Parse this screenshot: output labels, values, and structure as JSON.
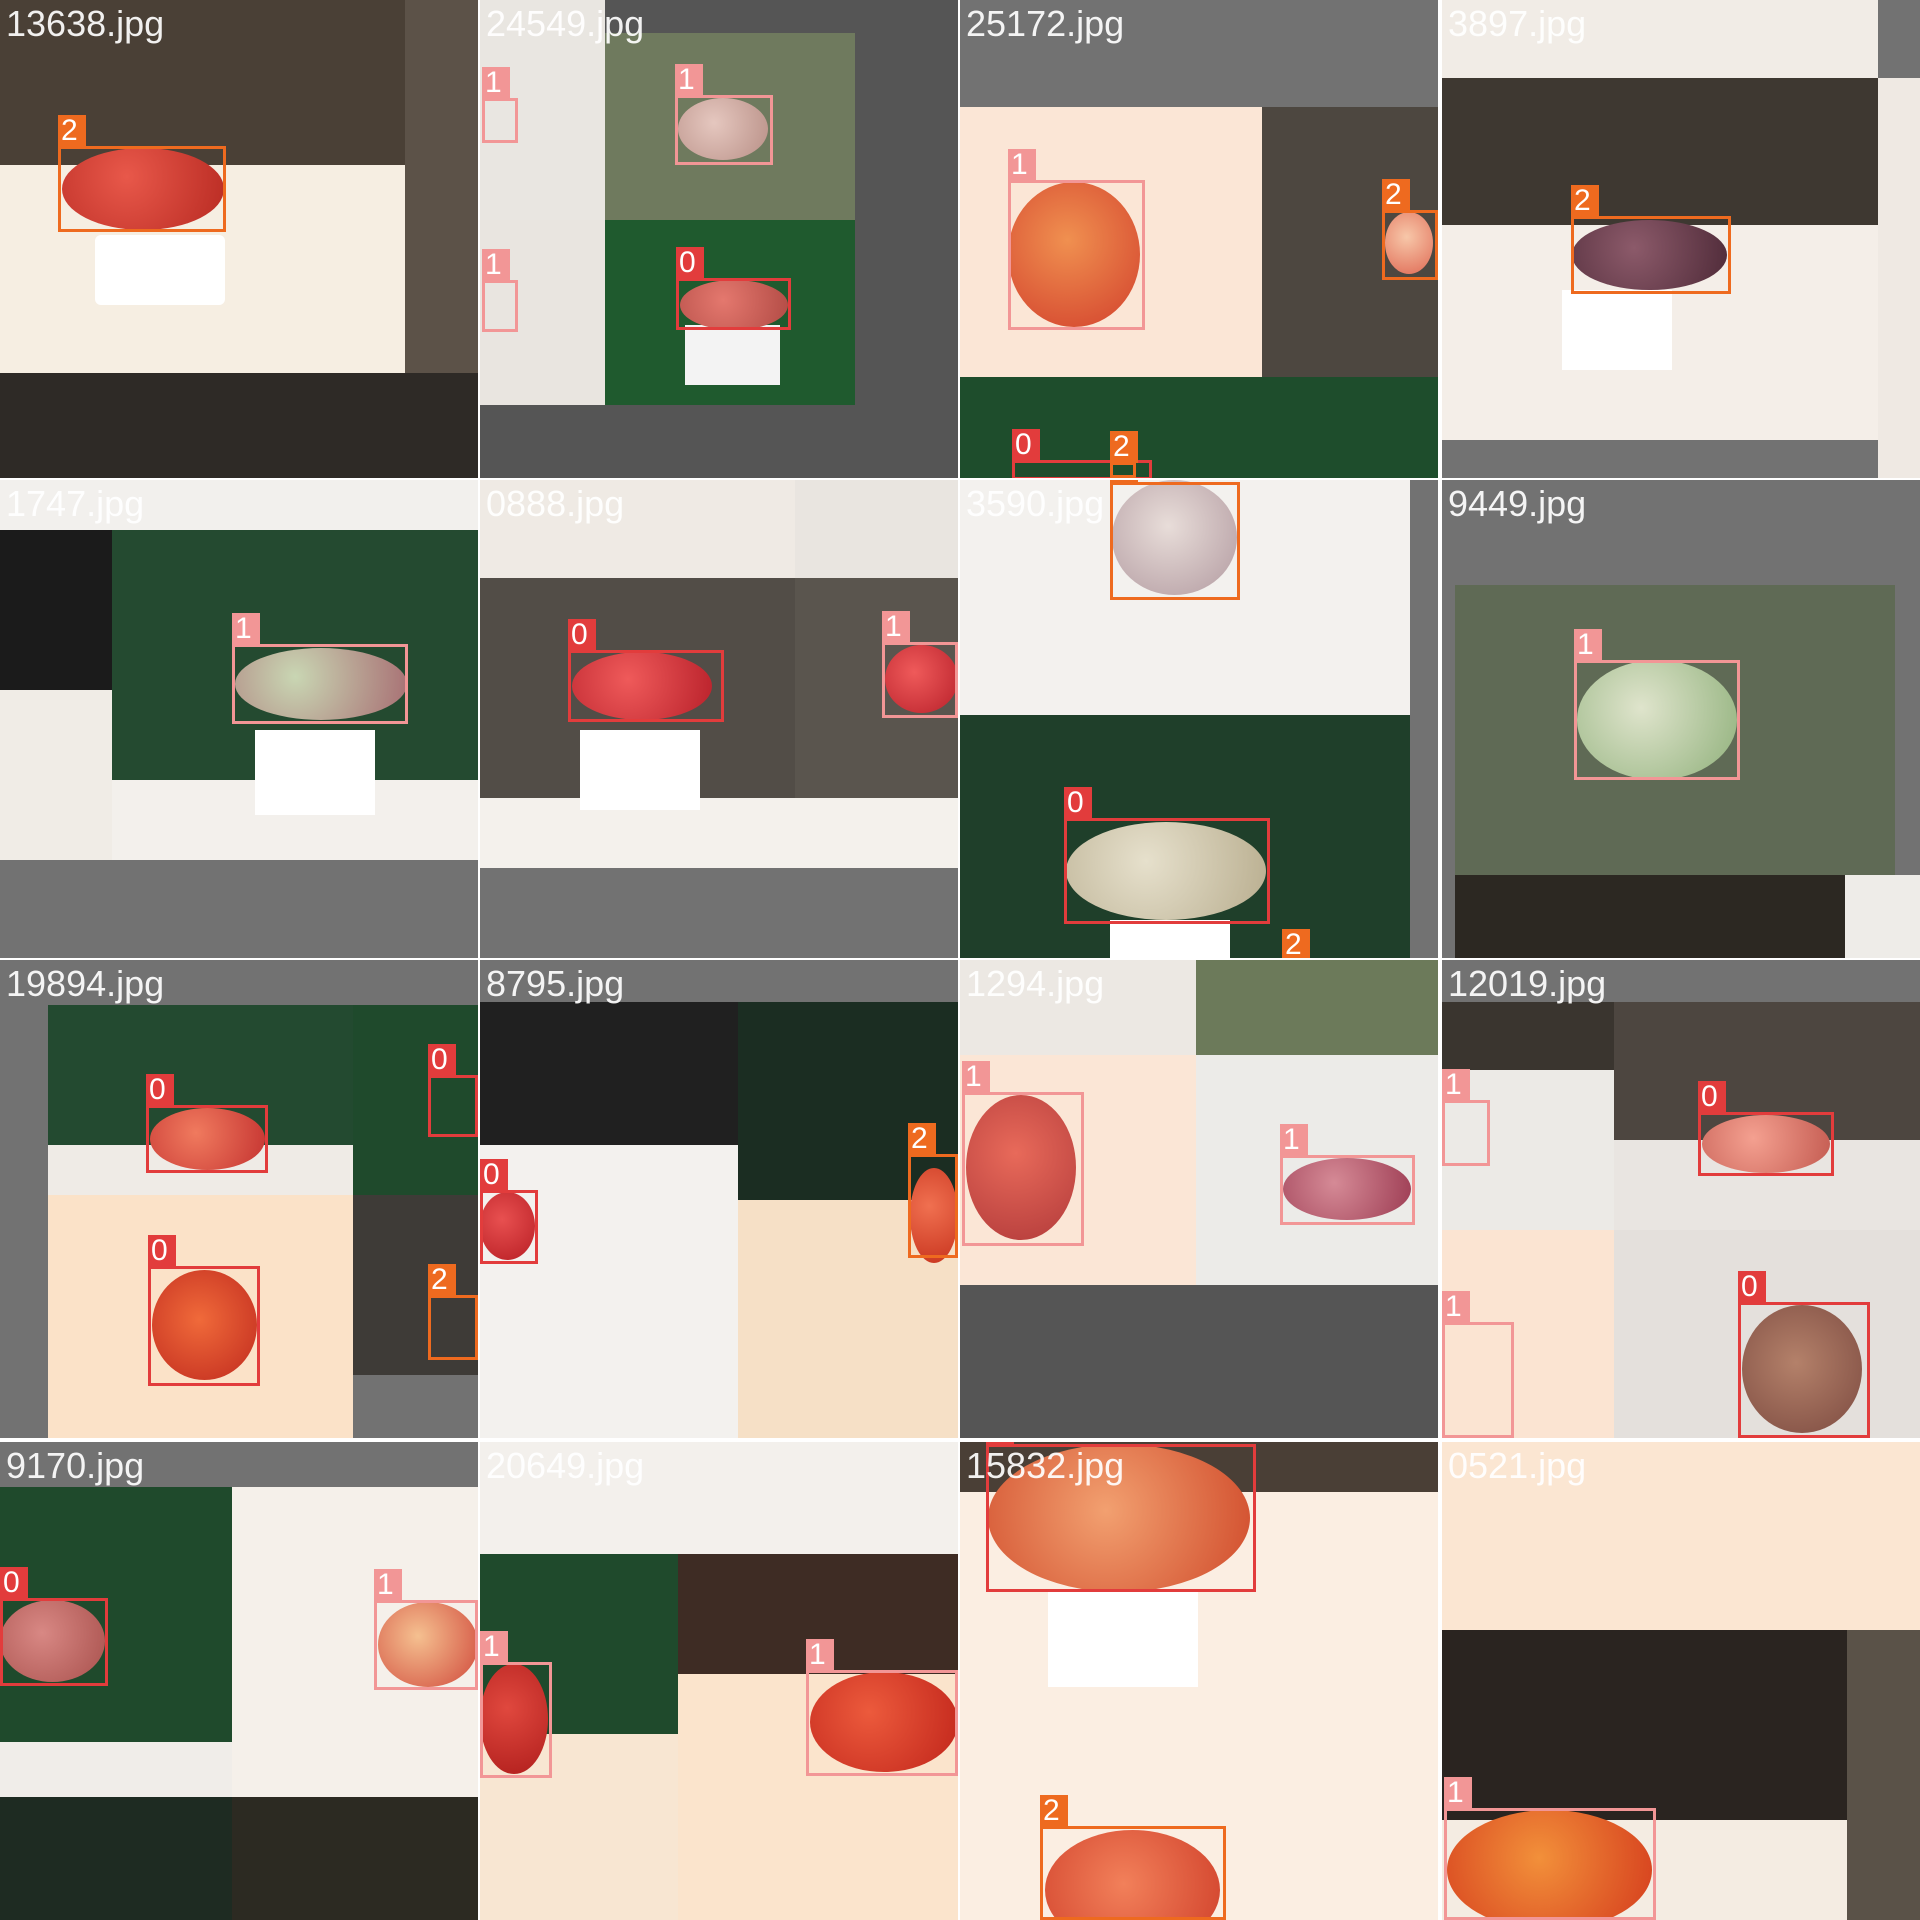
{
  "tiles": [
    {
      "label": "13638.jpg",
      "boxes": [
        {
          "cls": "2"
        }
      ]
    },
    {
      "label": "24549.jpg",
      "boxes": [
        {
          "cls": "1"
        },
        {
          "cls": "1"
        },
        {
          "cls": "1"
        },
        {
          "cls": "0"
        }
      ]
    },
    {
      "label": "25172.jpg",
      "boxes": [
        {
          "cls": "1"
        },
        {
          "cls": "2"
        },
        {
          "cls": "0"
        },
        {
          "cls": "2"
        }
      ]
    },
    {
      "label": "3897.jpg",
      "boxes": [
        {
          "cls": "2"
        }
      ]
    },
    {
      "label": "1747.jpg",
      "boxes": [
        {
          "cls": "1"
        }
      ]
    },
    {
      "label": "0888.jpg",
      "boxes": [
        {
          "cls": "0"
        },
        {
          "cls": "1"
        }
      ]
    },
    {
      "label": "3590.jpg",
      "boxes": [
        {
          "cls": "2"
        },
        {
          "cls": "0"
        },
        {
          "cls": "2"
        }
      ]
    },
    {
      "label": "9449.jpg",
      "boxes": [
        {
          "cls": "1"
        }
      ]
    },
    {
      "label": "19894.jpg",
      "boxes": [
        {
          "cls": "0"
        },
        {
          "cls": "0"
        },
        {
          "cls": "0"
        },
        {
          "cls": "2"
        }
      ]
    },
    {
      "label": "8795.jpg",
      "boxes": [
        {
          "cls": "0"
        },
        {
          "cls": "2"
        }
      ]
    },
    {
      "label": "1294.jpg",
      "boxes": [
        {
          "cls": "1"
        },
        {
          "cls": "1"
        }
      ]
    },
    {
      "label": "12019.jpg",
      "boxes": [
        {
          "cls": "1"
        },
        {
          "cls": "0"
        },
        {
          "cls": "1"
        },
        {
          "cls": "0"
        }
      ]
    },
    {
      "label": "9170.jpg",
      "boxes": [
        {
          "cls": "0"
        },
        {
          "cls": "1"
        }
      ]
    },
    {
      "label": "20649.jpg",
      "boxes": [
        {
          "cls": "1"
        },
        {
          "cls": "1"
        }
      ]
    },
    {
      "label": "15832.jpg",
      "boxes": [
        {
          "cls": "0"
        },
        {
          "cls": "2"
        }
      ]
    },
    {
      "label": "0521.jpg",
      "boxes": [
        {
          "cls": "1"
        }
      ]
    }
  ],
  "class_colors": {
    "0": "#e23c3c",
    "1": "#f29696",
    "2": "#ee6a1f"
  }
}
